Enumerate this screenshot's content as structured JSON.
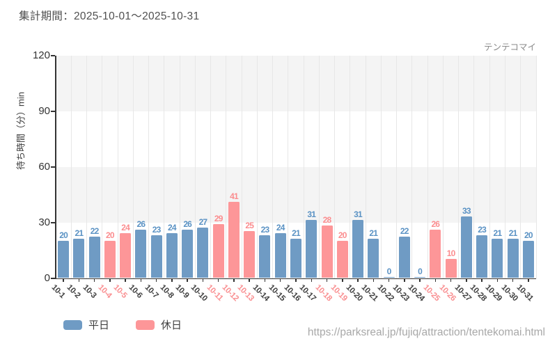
{
  "header": {
    "title": "集計期間：2025-10-01～2025-10-31"
  },
  "annotation": "テンテコマイ",
  "footer": {
    "url": "https://parksreal.jp/fujiq/attraction/tentekomai.html"
  },
  "colors": {
    "weekday_bar": "#6f9bc4",
    "holiday_bar": "#fd9698",
    "weekday_label": "#5a92c4",
    "holiday_label": "#fb8d8f",
    "weekday_tick": "#3f3f3f",
    "holiday_tick": "#f98f91",
    "band_gray": "#f4f4f4",
    "axis": "#333333"
  },
  "legend": [
    {
      "key": "weekday",
      "label": "平日"
    },
    {
      "key": "holiday",
      "label": "休日"
    }
  ],
  "chart_data": {
    "type": "bar",
    "title": "テンテコマイ",
    "xlabel": "",
    "ylabel": "待ち時間（分）min",
    "ylim": [
      0,
      120
    ],
    "yticks": [
      0,
      30,
      60,
      90,
      120
    ],
    "grid": "vertical-light, alternating horizontal bands",
    "legend_position": "bottom-left",
    "categories": [
      "10-1",
      "10-2",
      "10-3",
      "10-4",
      "10-5",
      "10-6",
      "10-7",
      "10-8",
      "10-9",
      "10-10",
      "10-11",
      "10-12",
      "10-13",
      "10-14",
      "10-15",
      "10-16",
      "10-17",
      "10-18",
      "10-19",
      "10-20",
      "10-21",
      "10-22",
      "10-23",
      "10-24",
      "10-25",
      "10-26",
      "10-27",
      "10-28",
      "10-29",
      "10-30",
      "10-31"
    ],
    "values": [
      20,
      21,
      22,
      20,
      24,
      26,
      23,
      24,
      26,
      27,
      29,
      41,
      25,
      23,
      24,
      21,
      31,
      28,
      20,
      31,
      21,
      0,
      22,
      0,
      26,
      10,
      33,
      23,
      21,
      21,
      20
    ],
    "day_type": [
      "weekday",
      "weekday",
      "weekday",
      "holiday",
      "holiday",
      "weekday",
      "weekday",
      "weekday",
      "weekday",
      "weekday",
      "holiday",
      "holiday",
      "holiday",
      "weekday",
      "weekday",
      "weekday",
      "weekday",
      "holiday",
      "holiday",
      "weekday",
      "weekday",
      "weekday",
      "weekday",
      "weekday",
      "holiday",
      "holiday",
      "weekday",
      "weekday",
      "weekday",
      "weekday",
      "weekday"
    ],
    "series": [
      {
        "name": "平日",
        "color": "#6f9bc4"
      },
      {
        "name": "休日",
        "color": "#fd9698"
      }
    ]
  }
}
